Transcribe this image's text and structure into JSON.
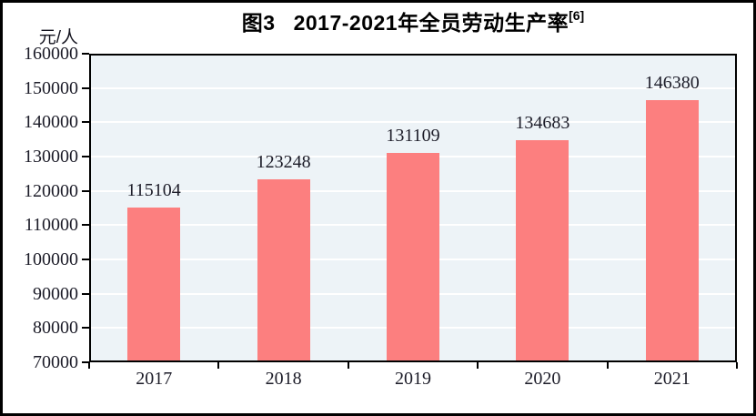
{
  "title": {
    "prefix": "图3",
    "main": "2017-2021年全员劳动生产率",
    "superscript": "[6]"
  },
  "y_axis": {
    "unit": "元/人"
  },
  "chart_data": {
    "type": "bar",
    "title": "图3 2017-2021年全员劳动生产率[6]",
    "categories": [
      "2017",
      "2018",
      "2019",
      "2020",
      "2021"
    ],
    "values": [
      115104,
      123248,
      131109,
      134683,
      146380
    ],
    "value_labels": [
      "115104",
      "123248",
      "131109",
      "134683",
      "146380"
    ],
    "xlabel": "",
    "ylabel": "元/人",
    "ylim": [
      70000,
      160000
    ],
    "ytick_step": 10000,
    "ytick_labels": [
      "70000",
      "80000",
      "90000",
      "100000",
      "110000",
      "120000",
      "130000",
      "140000",
      "150000",
      "160000"
    ],
    "grid": "horizontal",
    "legend": "none"
  },
  "colors": {
    "bar": "#fc7f7f",
    "plot_background": "#edf3f7",
    "gridline": "#ffffff",
    "axis": "#000000",
    "tick_text": "#1c1c28",
    "title_text": "#000000",
    "page_background": "#ffffff"
  }
}
